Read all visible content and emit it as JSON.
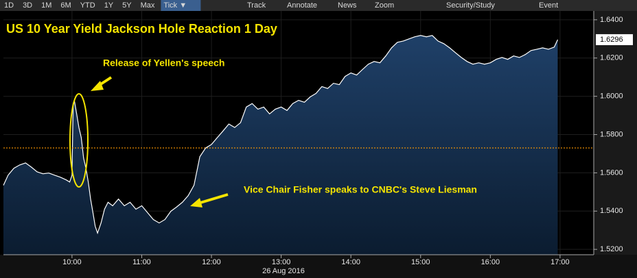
{
  "toolbar": {
    "ranges": [
      "1D",
      "3D",
      "1M",
      "6M",
      "YTD",
      "1Y",
      "5Y",
      "Max"
    ],
    "active": "Tick ▼",
    "tools": [
      "Track",
      "Annotate",
      "News",
      "Zoom"
    ],
    "right": [
      "Security/Study",
      "Event"
    ]
  },
  "chart_data": {
    "type": "area",
    "title": "US 10 Year Yield Jackson Hole Reaction 1 Day",
    "annotations": [
      "Release of Yellen's speech",
      "Vice Chair Fisher speaks to CNBC's Steve Liesman"
    ],
    "date_label": "26 Aug 2016",
    "x": [
      "09:01",
      "09:05",
      "09:10",
      "09:15",
      "09:20",
      "09:25",
      "09:30",
      "09:35",
      "09:40",
      "09:45",
      "09:50",
      "09:55",
      "09:58",
      "10:00",
      "10:01",
      "10:02",
      "10:04",
      "10:06",
      "10:08",
      "10:10",
      "10:12",
      "10:14",
      "10:16",
      "10:18",
      "10:20",
      "10:22",
      "10:25",
      "10:28",
      "10:31",
      "10:35",
      "10:40",
      "10:45",
      "10:50",
      "10:55",
      "11:00",
      "11:05",
      "11:10",
      "11:15",
      "11:20",
      "11:25",
      "11:30",
      "11:35",
      "11:40",
      "11:45",
      "11:48",
      "11:50",
      "11:55",
      "12:00",
      "12:05",
      "12:10",
      "12:15",
      "12:20",
      "12:25",
      "12:30",
      "12:35",
      "12:40",
      "12:45",
      "12:50",
      "12:55",
      "13:00",
      "13:05",
      "13:10",
      "13:15",
      "13:20",
      "13:25",
      "13:30",
      "13:35",
      "13:40",
      "13:45",
      "13:50",
      "13:55",
      "14:00",
      "14:05",
      "14:10",
      "14:15",
      "14:20",
      "14:25",
      "14:30",
      "14:35",
      "14:40",
      "14:45",
      "14:50",
      "14:55",
      "15:00",
      "15:05",
      "15:10",
      "15:15",
      "15:20",
      "15:25",
      "15:30",
      "15:35",
      "15:40",
      "15:45",
      "15:50",
      "15:55",
      "16:00",
      "16:05",
      "16:10",
      "16:15",
      "16:20",
      "16:25",
      "16:30",
      "16:35",
      "16:40",
      "16:45",
      "16:50",
      "16:55",
      "16:58"
    ],
    "values": [
      1.5535,
      1.5588,
      1.5624,
      1.5641,
      1.5652,
      1.563,
      1.5605,
      1.5595,
      1.5599,
      1.5588,
      1.5577,
      1.5563,
      1.5552,
      1.5588,
      1.5962,
      1.5979,
      1.5908,
      1.5837,
      1.5784,
      1.5677,
      1.5624,
      1.5552,
      1.5463,
      1.5392,
      1.5321,
      1.5285,
      1.5338,
      1.541,
      1.5446,
      1.5428,
      1.5463,
      1.5428,
      1.5446,
      1.541,
      1.5428,
      1.5392,
      1.5356,
      1.5338,
      1.5356,
      1.5399,
      1.5421,
      1.5446,
      1.5481,
      1.5535,
      1.5624,
      1.5684,
      1.573,
      1.5748,
      1.5784,
      1.5819,
      1.5855,
      1.5837,
      1.5862,
      1.5944,
      1.5962,
      1.5933,
      1.5944,
      1.5908,
      1.5933,
      1.5944,
      1.5926,
      1.5962,
      1.5979,
      1.5969,
      1.5997,
      1.6015,
      1.6051,
      1.6041,
      1.6068,
      1.6061,
      1.6104,
      1.6122,
      1.6111,
      1.614,
      1.6168,
      1.6182,
      1.6175,
      1.6211,
      1.6253,
      1.6282,
      1.6289,
      1.63,
      1.6311,
      1.6318,
      1.6311,
      1.6318,
      1.6289,
      1.6275,
      1.6253,
      1.6228,
      1.6203,
      1.6182,
      1.6168,
      1.6175,
      1.6168,
      1.6175,
      1.6193,
      1.6203,
      1.6193,
      1.6211,
      1.6203,
      1.6218,
      1.6239,
      1.6246,
      1.6253,
      1.6246,
      1.6257,
      1.6296
    ],
    "color": "#ffffff",
    "last_value": 1.6296,
    "last_value_label": "1.6296",
    "reference_line": 1.573,
    "reference_color": "#ff9900",
    "xlim": [
      "09:01",
      "17:29"
    ],
    "xticks": [
      "10:00",
      "11:00",
      "12:00",
      "13:00",
      "14:00",
      "15:00",
      "16:00",
      "17:00"
    ],
    "ylim": [
      1.5172,
      1.6446
    ],
    "yticks": [
      {
        "value": 1.52,
        "label": "1.5200"
      },
      {
        "value": 1.54,
        "label": "1.5400"
      },
      {
        "value": 1.56,
        "label": "1.5600"
      },
      {
        "value": 1.58,
        "label": "1.5800"
      },
      {
        "value": 1.6,
        "label": "1.6000"
      },
      {
        "value": 1.62,
        "label": "1.6200"
      },
      {
        "value": 1.64,
        "label": "1.6400"
      }
    ],
    "grid": true
  }
}
